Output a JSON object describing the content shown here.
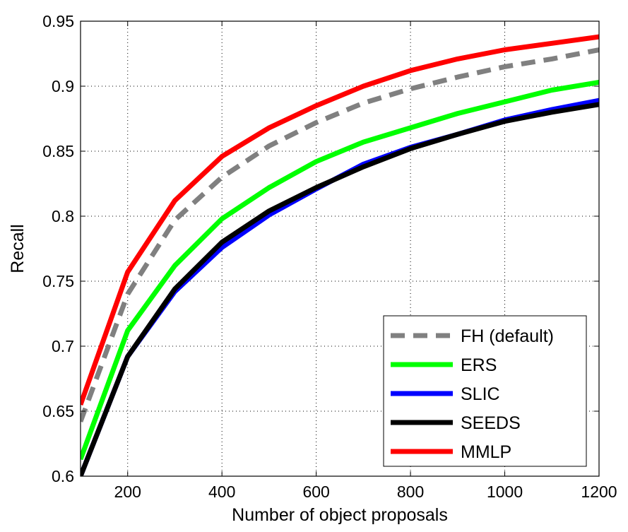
{
  "chart_data": {
    "type": "line",
    "title": "",
    "xlabel": "Number of object proposals",
    "ylabel": "Recall",
    "xlim": [
      100,
      1200
    ],
    "ylim": [
      0.6,
      0.95
    ],
    "xticks": [
      200,
      400,
      600,
      800,
      1000,
      1200
    ],
    "yticks": [
      0.6,
      0.65,
      0.7,
      0.75,
      0.8,
      0.85,
      0.9,
      0.95
    ],
    "grid": true,
    "legend_position": "bottom-right",
    "x": [
      100,
      200,
      300,
      400,
      500,
      600,
      700,
      800,
      900,
      1000,
      1100,
      1200
    ],
    "series": [
      {
        "name": "FH (default)",
        "color": "#808080",
        "dash": true,
        "values": [
          0.642,
          0.74,
          0.797,
          0.83,
          0.854,
          0.872,
          0.887,
          0.898,
          0.907,
          0.915,
          0.921,
          0.928
        ]
      },
      {
        "name": "ERS",
        "color": "#00ff00",
        "dash": false,
        "values": [
          0.613,
          0.712,
          0.762,
          0.798,
          0.822,
          0.842,
          0.857,
          0.868,
          0.879,
          0.888,
          0.897,
          0.903
        ]
      },
      {
        "name": "SLIC",
        "color": "#0000ff",
        "dash": false,
        "values": [
          0.6,
          0.692,
          0.742,
          0.776,
          0.801,
          0.821,
          0.84,
          0.853,
          0.863,
          0.874,
          0.882,
          0.889
        ]
      },
      {
        "name": "SEEDS",
        "color": "#000000",
        "dash": false,
        "values": [
          0.6,
          0.692,
          0.744,
          0.78,
          0.804,
          0.822,
          0.838,
          0.852,
          0.863,
          0.873,
          0.88,
          0.886
        ]
      },
      {
        "name": "MMLP",
        "color": "#ff0000",
        "dash": false,
        "values": [
          0.655,
          0.757,
          0.812,
          0.846,
          0.868,
          0.885,
          0.9,
          0.912,
          0.921,
          0.928,
          0.933,
          0.938
        ]
      }
    ]
  }
}
